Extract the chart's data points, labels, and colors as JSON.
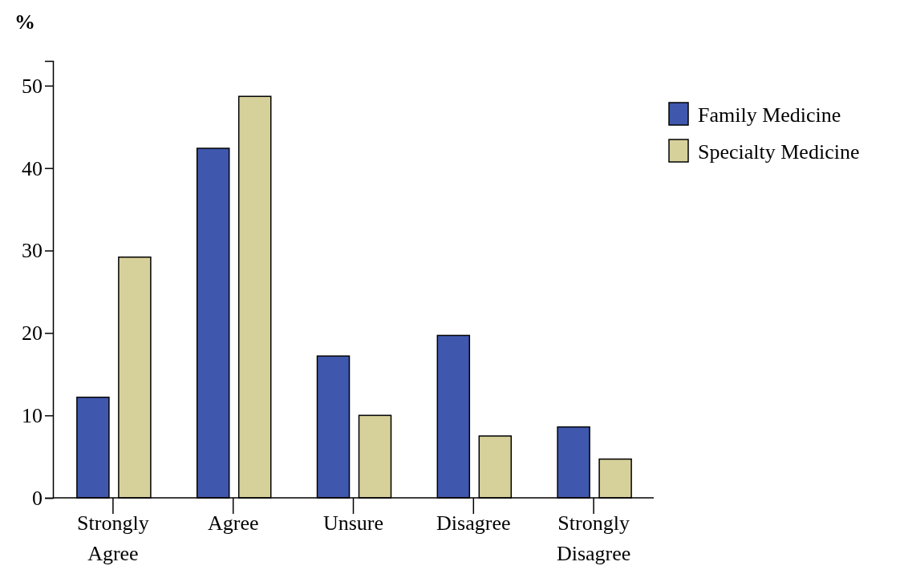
{
  "chart_data": {
    "type": "bar",
    "ylabel": "%",
    "categories": [
      "Strongly Agree",
      "Agree",
      "Unsure",
      "Disagree",
      "Strongly Disagree"
    ],
    "series": [
      {
        "name": "Family Medicine",
        "color": "#3f57ad",
        "values": [
          12.2,
          42.4,
          17.2,
          19.7,
          8.6
        ]
      },
      {
        "name": "Specialty Medicine",
        "color": "#d6d19a",
        "values": [
          29.2,
          48.7,
          10.0,
          7.5,
          4.7
        ]
      }
    ],
    "ylim": [
      0,
      53
    ],
    "yticks": [
      0,
      10,
      20,
      30,
      40,
      50
    ],
    "grid": false,
    "legend": "top right"
  }
}
